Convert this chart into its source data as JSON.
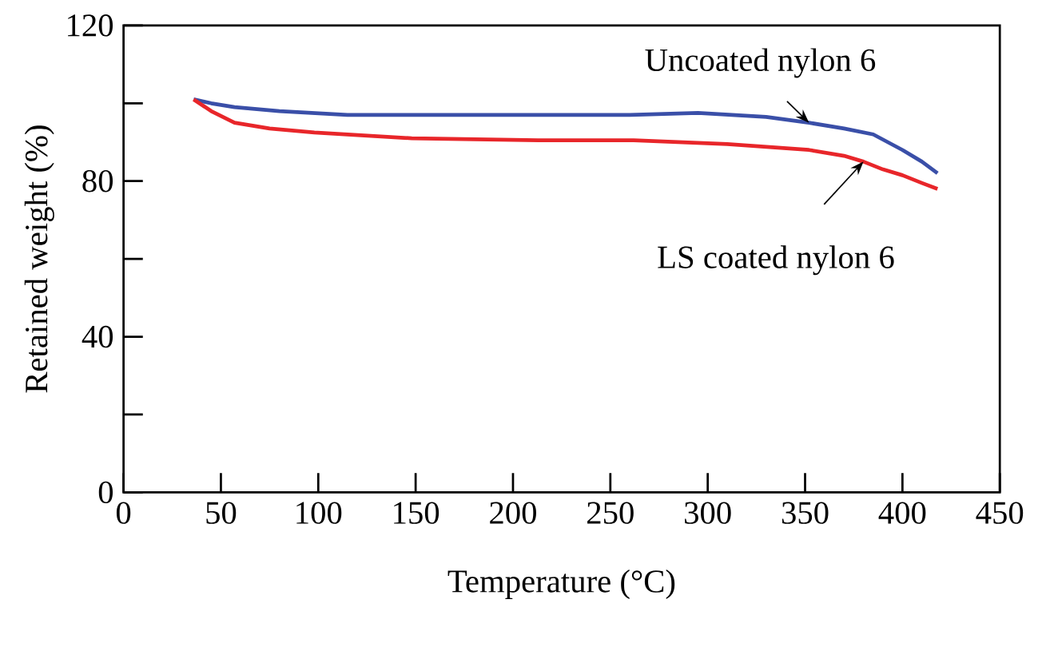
{
  "chart_data": {
    "type": "line",
    "xlabel": "Temperature (°C)",
    "ylabel": "Retained weight (%)",
    "xlim": [
      0,
      450
    ],
    "xticks": [
      0,
      50,
      100,
      150,
      200,
      250,
      300,
      350,
      400,
      450
    ],
    "ylim": [
      0,
      120
    ],
    "yticks": [
      0,
      {
        "value": 20,
        "label": null
      },
      40,
      {
        "value": 60,
        "label": null
      },
      80,
      {
        "value": 100,
        "label": null
      },
      120
    ],
    "grid": false,
    "legend": false,
    "marker": "none",
    "line_style": "solid",
    "series": [
      {
        "name": "Uncoated nylon 6",
        "color": "#3a4fa8",
        "x": [
          36,
          45,
          57,
          80,
          115,
          160,
          220,
          260,
          295,
          330,
          352,
          370,
          385,
          400,
          410,
          418
        ],
        "values": [
          101,
          100,
          99,
          98,
          97,
          97,
          97,
          97,
          97.5,
          96.5,
          95,
          93.5,
          92,
          88,
          85,
          82
        ]
      },
      {
        "name": "LS coated nylon 6",
        "color": "#e8262a",
        "x": [
          36,
          45,
          57,
          75,
          98,
          148,
          213,
          262,
          310,
          352,
          370,
          380,
          390,
          400,
          410,
          418
        ],
        "values": [
          101,
          98,
          95,
          93.5,
          92.5,
          91,
          90.5,
          90.5,
          89.5,
          88,
          86.5,
          85,
          83,
          81.5,
          79.5,
          78
        ]
      }
    ]
  }
}
